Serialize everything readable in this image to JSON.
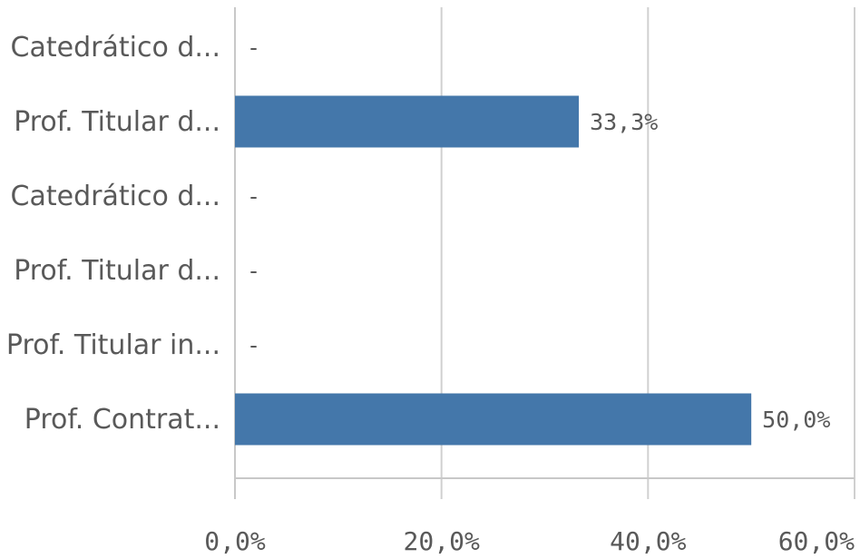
{
  "chart_data": {
    "type": "bar",
    "orientation": "horizontal",
    "categories": [
      "Catedrático d...",
      "Prof. Titular d...",
      "Catedrático d...",
      "Prof. Titular d...",
      "Prof. Titular in...",
      "Prof. Contrat..."
    ],
    "values": [
      null,
      33.3,
      null,
      null,
      null,
      50.0
    ],
    "value_labels": [
      "-",
      "33,3%",
      "-",
      "-",
      "-",
      "50,0%"
    ],
    "xlim": [
      0,
      60
    ],
    "xticks": [
      0,
      20,
      40,
      60
    ],
    "xtick_labels": [
      "0,0%",
      "20,0%",
      "40,0%",
      "60,0%"
    ],
    "grid": true,
    "bar_color": "#4477aa"
  }
}
